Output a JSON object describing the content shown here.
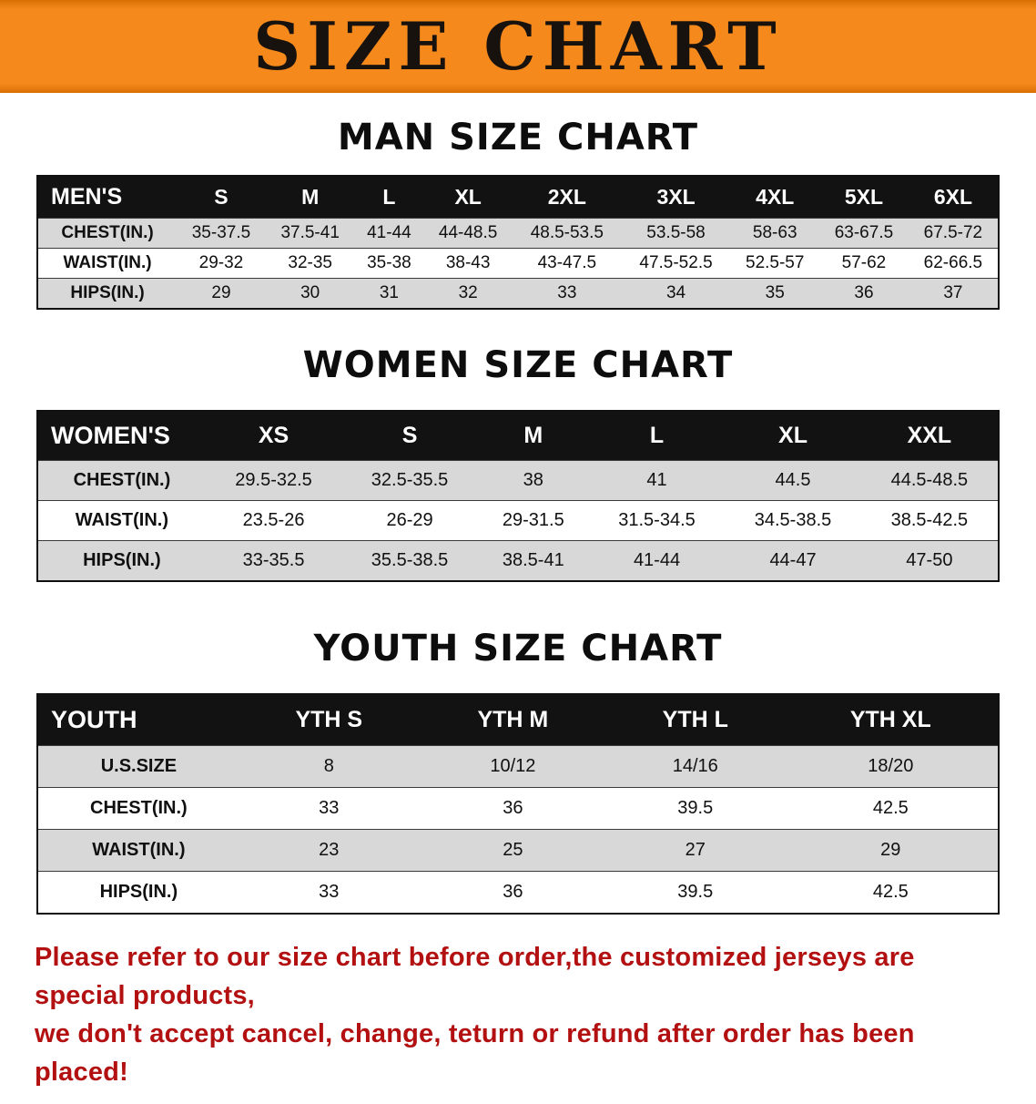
{
  "banner": {
    "title": "SIZE CHART"
  },
  "chart_data": [
    {
      "type": "table",
      "title": "MAN SIZE CHART",
      "columns": [
        "MEN'S",
        "S",
        "M",
        "L",
        "XL",
        "2XL",
        "3XL",
        "4XL",
        "5XL",
        "6XL"
      ],
      "rows": [
        [
          "CHEST(IN.)",
          "35-37.5",
          "37.5-41",
          "41-44",
          "44-48.5",
          "48.5-53.5",
          "53.5-58",
          "58-63",
          "63-67.5",
          "67.5-72"
        ],
        [
          "WAIST(IN.)",
          "29-32",
          "32-35",
          "35-38",
          "38-43",
          "43-47.5",
          "47.5-52.5",
          "52.5-57",
          "57-62",
          "62-66.5"
        ],
        [
          "HIPS(IN.)",
          "29",
          "30",
          "31",
          "32",
          "33",
          "34",
          "35",
          "36",
          "37"
        ]
      ]
    },
    {
      "type": "table",
      "title": "WOMEN SIZE CHART",
      "columns": [
        "WOMEN'S",
        "XS",
        "S",
        "M",
        "L",
        "XL",
        "XXL"
      ],
      "rows": [
        [
          "CHEST(IN.)",
          "29.5-32.5",
          "32.5-35.5",
          "38",
          "41",
          "44.5",
          "44.5-48.5"
        ],
        [
          "WAIST(IN.)",
          "23.5-26",
          "26-29",
          "29-31.5",
          "31.5-34.5",
          "34.5-38.5",
          "38.5-42.5"
        ],
        [
          "HIPS(IN.)",
          "33-35.5",
          "35.5-38.5",
          "38.5-41",
          "41-44",
          "44-47",
          "47-50"
        ]
      ]
    },
    {
      "type": "table",
      "title": "YOUTH SIZE CHART",
      "columns": [
        "YOUTH",
        "YTH S",
        "YTH M",
        "YTH L",
        "YTH XL"
      ],
      "rows": [
        [
          "U.S.SIZE",
          "8",
          "10/12",
          "14/16",
          "18/20"
        ],
        [
          "CHEST(IN.)",
          "33",
          "36",
          "39.5",
          "42.5"
        ],
        [
          "WAIST(IN.)",
          "23",
          "25",
          "27",
          "29"
        ],
        [
          "HIPS(IN.)",
          "33",
          "36",
          "39.5",
          "42.5"
        ]
      ]
    }
  ],
  "footer": {
    "line1": "Please refer to our size chart before order,the customized jerseys are special products,",
    "line2": "we don't accept cancel, change, teturn or refund after order has been placed!"
  },
  "colors": {
    "banner_bg": "#f6891c",
    "header_bg": "#121212",
    "stripe": "#d8d8d8",
    "footer_text": "#b31111"
  }
}
